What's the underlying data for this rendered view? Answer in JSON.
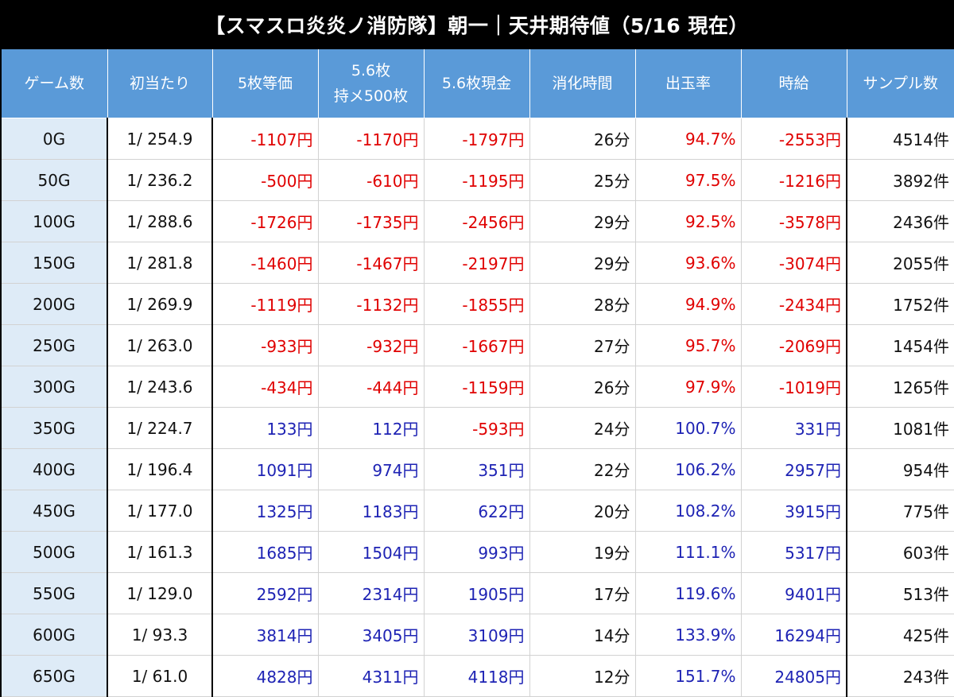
{
  "title": "【スマスロ炎炎ノ消防隊】朝一｜天井期待値（5/16 現在）",
  "colors": {
    "header_bg": "#5a9ad8",
    "game_col_bg": "#deebf7",
    "negative": "#e00000",
    "positive": "#1e23b4"
  },
  "headers": {
    "game": "ゲーム数",
    "first_hit": "初当たり",
    "eq5": "5枚等価",
    "mochi_line1": "5.6枚",
    "mochi_line2": "持メ500枚",
    "cash": "5.6枚現金",
    "time": "消化時間",
    "payout": "出玉率",
    "hourly": "時給",
    "samples": "サンプル数"
  },
  "rows": [
    {
      "game": "0G",
      "first_hit": "1/ 254.9",
      "eq5": "-1107円",
      "mochi": "-1170円",
      "cash": "-1797円",
      "time": "26分",
      "payout": "94.7%",
      "hourly": "-2553円",
      "samples": "4514件"
    },
    {
      "game": "50G",
      "first_hit": "1/ 236.2",
      "eq5": "-500円",
      "mochi": "-610円",
      "cash": "-1195円",
      "time": "25分",
      "payout": "97.5%",
      "hourly": "-1216円",
      "samples": "3892件"
    },
    {
      "game": "100G",
      "first_hit": "1/ 288.6",
      "eq5": "-1726円",
      "mochi": "-1735円",
      "cash": "-2456円",
      "time": "29分",
      "payout": "92.5%",
      "hourly": "-3578円",
      "samples": "2436件"
    },
    {
      "game": "150G",
      "first_hit": "1/ 281.8",
      "eq5": "-1460円",
      "mochi": "-1467円",
      "cash": "-2197円",
      "time": "29分",
      "payout": "93.6%",
      "hourly": "-3074円",
      "samples": "2055件"
    },
    {
      "game": "200G",
      "first_hit": "1/ 269.9",
      "eq5": "-1119円",
      "mochi": "-1132円",
      "cash": "-1855円",
      "time": "28分",
      "payout": "94.9%",
      "hourly": "-2434円",
      "samples": "1752件"
    },
    {
      "game": "250G",
      "first_hit": "1/ 263.0",
      "eq5": "-933円",
      "mochi": "-932円",
      "cash": "-1667円",
      "time": "27分",
      "payout": "95.7%",
      "hourly": "-2069円",
      "samples": "1454件"
    },
    {
      "game": "300G",
      "first_hit": "1/ 243.6",
      "eq5": "-434円",
      "mochi": "-444円",
      "cash": "-1159円",
      "time": "26分",
      "payout": "97.9%",
      "hourly": "-1019円",
      "samples": "1265件"
    },
    {
      "game": "350G",
      "first_hit": "1/ 224.7",
      "eq5": "133円",
      "mochi": "112円",
      "cash": "-593円",
      "time": "24分",
      "payout": "100.7%",
      "hourly": "331円",
      "samples": "1081件"
    },
    {
      "game": "400G",
      "first_hit": "1/ 196.4",
      "eq5": "1091円",
      "mochi": "974円",
      "cash": "351円",
      "time": "22分",
      "payout": "106.2%",
      "hourly": "2957円",
      "samples": "954件"
    },
    {
      "game": "450G",
      "first_hit": "1/ 177.0",
      "eq5": "1325円",
      "mochi": "1183円",
      "cash": "622円",
      "time": "20分",
      "payout": "108.2%",
      "hourly": "3915円",
      "samples": "775件"
    },
    {
      "game": "500G",
      "first_hit": "1/ 161.3",
      "eq5": "1685円",
      "mochi": "1504円",
      "cash": "993円",
      "time": "19分",
      "payout": "111.1%",
      "hourly": "5317円",
      "samples": "603件"
    },
    {
      "game": "550G",
      "first_hit": "1/ 129.0",
      "eq5": "2592円",
      "mochi": "2314円",
      "cash": "1905円",
      "time": "17分",
      "payout": "119.6%",
      "hourly": "9401円",
      "samples": "513件"
    },
    {
      "game": "600G",
      "first_hit": "1/ 93.3",
      "eq5": "3814円",
      "mochi": "3405円",
      "cash": "3109円",
      "time": "14分",
      "payout": "133.9%",
      "hourly": "16294円",
      "samples": "425件"
    },
    {
      "game": "650G",
      "first_hit": "1/ 61.0",
      "eq5": "4828円",
      "mochi": "4311円",
      "cash": "4118円",
      "time": "12分",
      "payout": "151.7%",
      "hourly": "24805円",
      "samples": "243件"
    }
  ]
}
